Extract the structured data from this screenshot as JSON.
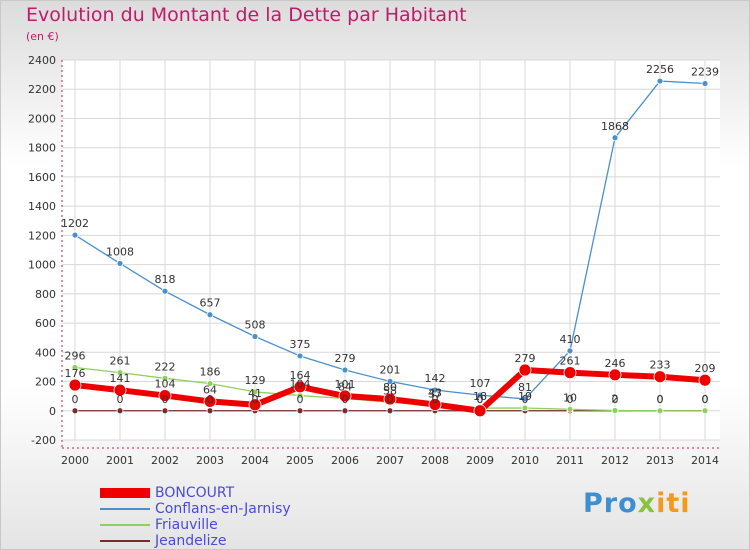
{
  "title": "Evolution du Montant de la Dette par Habitant",
  "unit": "(en €)",
  "logo": {
    "part1": "Pro",
    "part2": "x",
    "part3": "iti"
  },
  "chart_data": {
    "type": "line",
    "title": "Evolution du Montant de la Dette par Habitant",
    "ylabel": "(en €)",
    "xlabel": "",
    "ylim": [
      -200,
      2400
    ],
    "y_ticks": [
      -200,
      0,
      200,
      400,
      600,
      800,
      1000,
      1200,
      1400,
      1600,
      1800,
      2000,
      2200,
      2400
    ],
    "categories": [
      "2000",
      "2001",
      "2002",
      "2003",
      "2004",
      "2005",
      "2006",
      "2007",
      "2008",
      "2009",
      "2010",
      "2011",
      "2012",
      "2013",
      "2014"
    ],
    "series": [
      {
        "name": "BONCOURT",
        "color": "#ee0000",
        "values": [
          176,
          141,
          104,
          64,
          41,
          164,
          101,
          80,
          43,
          0,
          279,
          261,
          246,
          233,
          209
        ]
      },
      {
        "name": "Conflans-en-Jarnisy",
        "color": "#4a90cc",
        "values": [
          1202,
          1008,
          818,
          657,
          508,
          375,
          279,
          201,
          142,
          107,
          81,
          410,
          1868,
          2256,
          2239
        ]
      },
      {
        "name": "Friauville",
        "color": "#8ed060",
        "values": [
          296,
          261,
          222,
          186,
          129,
          104,
          84,
          58,
          37,
          18,
          19,
          10,
          2,
          0,
          0
        ]
      },
      {
        "name": "Jeandelize",
        "color": "#7a2a2a",
        "values": [
          0,
          0,
          0,
          0,
          0,
          0,
          0,
          0,
          0,
          0,
          0,
          0,
          0,
          0,
          0
        ]
      }
    ],
    "legend_position": "bottom-left"
  }
}
